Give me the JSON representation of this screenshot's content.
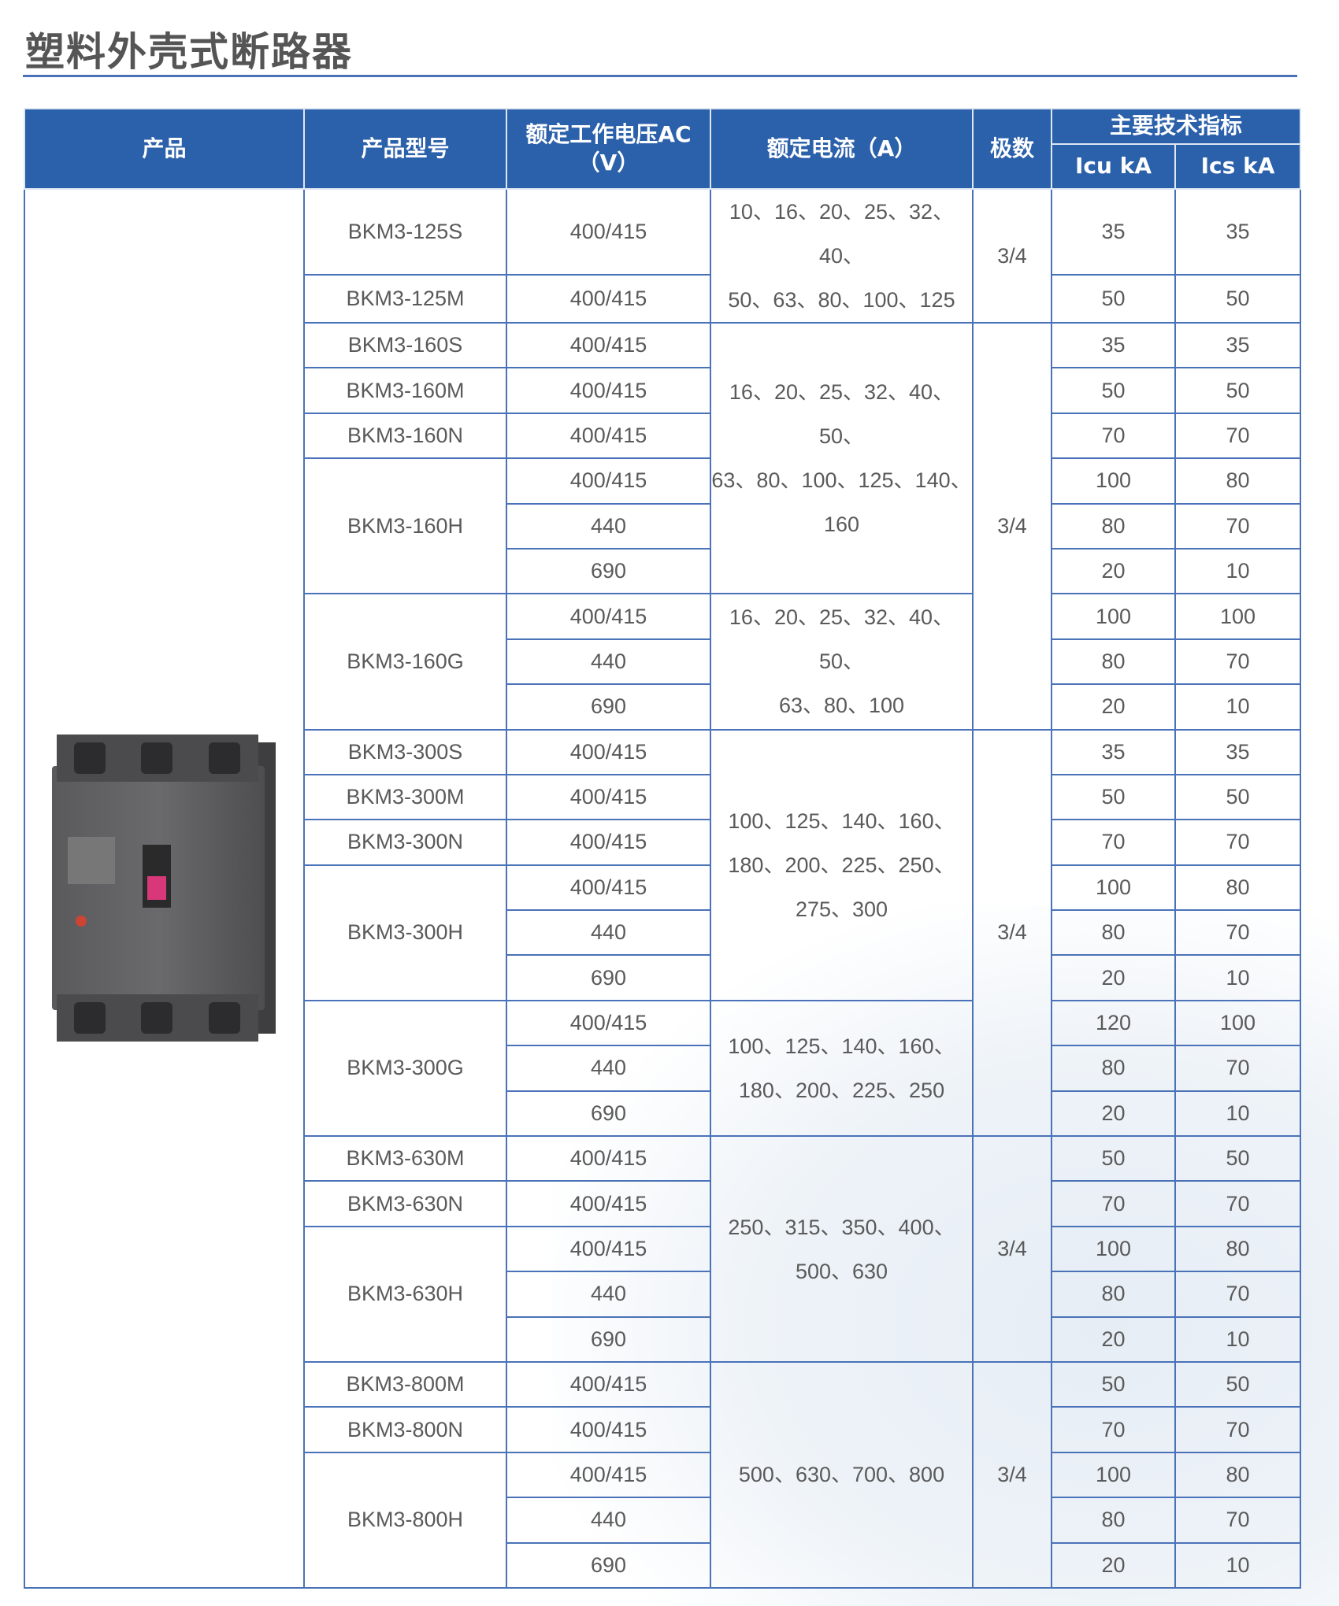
{
  "title": "塑料外壳式断路器",
  "colors": {
    "header_bg": "#2b60aa",
    "border": "#4a72b8",
    "text": "#5a5a5a"
  },
  "header": {
    "product": "产品",
    "model": "产品型号",
    "voltage": "额定工作电压AC（V）",
    "current": "额定电流（A）",
    "poles": "极数",
    "main_specs": "主要技术指标",
    "icu": "Icu kA",
    "ics": "Ics kA"
  },
  "product_image": "molded-case-circuit-breaker",
  "models": [
    {
      "model": "BKM3-125S",
      "rows": [
        {
          "voltage": "400/415",
          "icu": "35",
          "ics": "35"
        }
      ]
    },
    {
      "model": "BKM3-125M",
      "rows": [
        {
          "voltage": "400/415",
          "icu": "50",
          "ics": "50"
        }
      ]
    },
    {
      "model": "BKM3-160S",
      "rows": [
        {
          "voltage": "400/415",
          "icu": "35",
          "ics": "35"
        }
      ]
    },
    {
      "model": "BKM3-160M",
      "rows": [
        {
          "voltage": "400/415",
          "icu": "50",
          "ics": "50"
        }
      ]
    },
    {
      "model": "BKM3-160N",
      "rows": [
        {
          "voltage": "400/415",
          "icu": "70",
          "ics": "70"
        }
      ]
    },
    {
      "model": "BKM3-160H",
      "rows": [
        {
          "voltage": "400/415",
          "icu": "100",
          "ics": "80"
        },
        {
          "voltage": "440",
          "icu": "80",
          "ics": "70"
        },
        {
          "voltage": "690",
          "icu": "20",
          "ics": "10"
        }
      ]
    },
    {
      "model": "BKM3-160G",
      "rows": [
        {
          "voltage": "400/415",
          "icu": "100",
          "ics": "100"
        },
        {
          "voltage": "440",
          "icu": "80",
          "ics": "70"
        },
        {
          "voltage": "690",
          "icu": "20",
          "ics": "10"
        }
      ]
    },
    {
      "model": "BKM3-300S",
      "rows": [
        {
          "voltage": "400/415",
          "icu": "35",
          "ics": "35"
        }
      ]
    },
    {
      "model": "BKM3-300M",
      "rows": [
        {
          "voltage": "400/415",
          "icu": "50",
          "ics": "50"
        }
      ]
    },
    {
      "model": "BKM3-300N",
      "rows": [
        {
          "voltage": "400/415",
          "icu": "70",
          "ics": "70"
        }
      ]
    },
    {
      "model": "BKM3-300H",
      "rows": [
        {
          "voltage": "400/415",
          "icu": "100",
          "ics": "80"
        },
        {
          "voltage": "440",
          "icu": "80",
          "ics": "70"
        },
        {
          "voltage": "690",
          "icu": "20",
          "ics": "10"
        }
      ]
    },
    {
      "model": "BKM3-300G",
      "rows": [
        {
          "voltage": "400/415",
          "icu": "120",
          "ics": "100"
        },
        {
          "voltage": "440",
          "icu": "80",
          "ics": "70"
        },
        {
          "voltage": "690",
          "icu": "20",
          "ics": "10"
        }
      ]
    },
    {
      "model": "BKM3-630M",
      "rows": [
        {
          "voltage": "400/415",
          "icu": "50",
          "ics": "50"
        }
      ]
    },
    {
      "model": "BKM3-630N",
      "rows": [
        {
          "voltage": "400/415",
          "icu": "70",
          "ics": "70"
        }
      ]
    },
    {
      "model": "BKM3-630H",
      "rows": [
        {
          "voltage": "400/415",
          "icu": "100",
          "ics": "80"
        },
        {
          "voltage": "440",
          "icu": "80",
          "ics": "70"
        },
        {
          "voltage": "690",
          "icu": "20",
          "ics": "10"
        }
      ]
    },
    {
      "model": "BKM3-800M",
      "rows": [
        {
          "voltage": "400/415",
          "icu": "50",
          "ics": "50"
        }
      ]
    },
    {
      "model": "BKM3-800N",
      "rows": [
        {
          "voltage": "400/415",
          "icu": "70",
          "ics": "70"
        }
      ]
    },
    {
      "model": "BKM3-800H",
      "rows": [
        {
          "voltage": "400/415",
          "icu": "100",
          "ics": "80"
        },
        {
          "voltage": "440",
          "icu": "80",
          "ics": "70"
        },
        {
          "voltage": "690",
          "icu": "20",
          "ics": "10"
        }
      ]
    }
  ],
  "current_groups": [
    {
      "text": "10、16、20、25、32、40、\n50、63、80、100、125",
      "span": 2
    },
    {
      "text": "16、20、25、32、40、50、\n63、80、100、125、140、\n160",
      "span": 6
    },
    {
      "text": "16、20、25、32、40、50、\n63、80、100",
      "span": 3
    },
    {
      "text": "100、125、140、160、\n180、200、225、250、\n275、300",
      "span": 6
    },
    {
      "text": "100、125、140、160、\n180、200、225、250",
      "span": 3
    },
    {
      "text": "250、315、350、400、\n500、630",
      "span": 5
    },
    {
      "text": "500、630、700、800",
      "span": 5
    }
  ],
  "pole_groups": [
    {
      "text": "3/4",
      "span": 2
    },
    {
      "text": "3/4",
      "span": 9
    },
    {
      "text": "3/4",
      "span": 9
    },
    {
      "text": "3/4",
      "span": 5
    },
    {
      "text": "3/4",
      "span": 5
    }
  ]
}
